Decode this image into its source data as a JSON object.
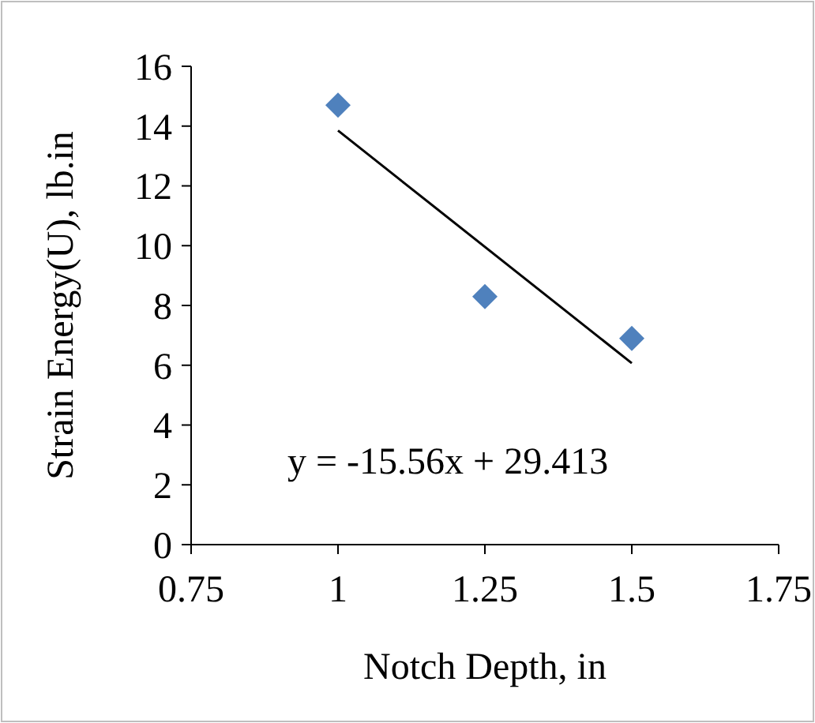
{
  "chart_data": {
    "type": "scatter",
    "xlabel": "Notch Depth, in",
    "ylabel": "Strain Energy(U), lb.in",
    "x": [
      1,
      1.25,
      1.5
    ],
    "series": [
      {
        "color": "#4f81bd",
        "marker": "diamond",
        "values": [
          14.7,
          8.3,
          6.9
        ]
      },
      {
        "type": "line",
        "color": "#000000",
        "x": [
          1,
          1.5
        ],
        "values": [
          13.85,
          6.07
        ],
        "line_style": "solid"
      }
    ],
    "xlim": [
      0.75,
      1.75
    ],
    "xticks": [
      0.75,
      1,
      1.25,
      1.5,
      1.75
    ],
    "ylim": [
      0,
      16
    ],
    "yticks": [
      0,
      2,
      4,
      6,
      8,
      10,
      12,
      14,
      16
    ],
    "grid": false,
    "annotations": [
      "y = -15.56x + 29.413"
    ]
  }
}
